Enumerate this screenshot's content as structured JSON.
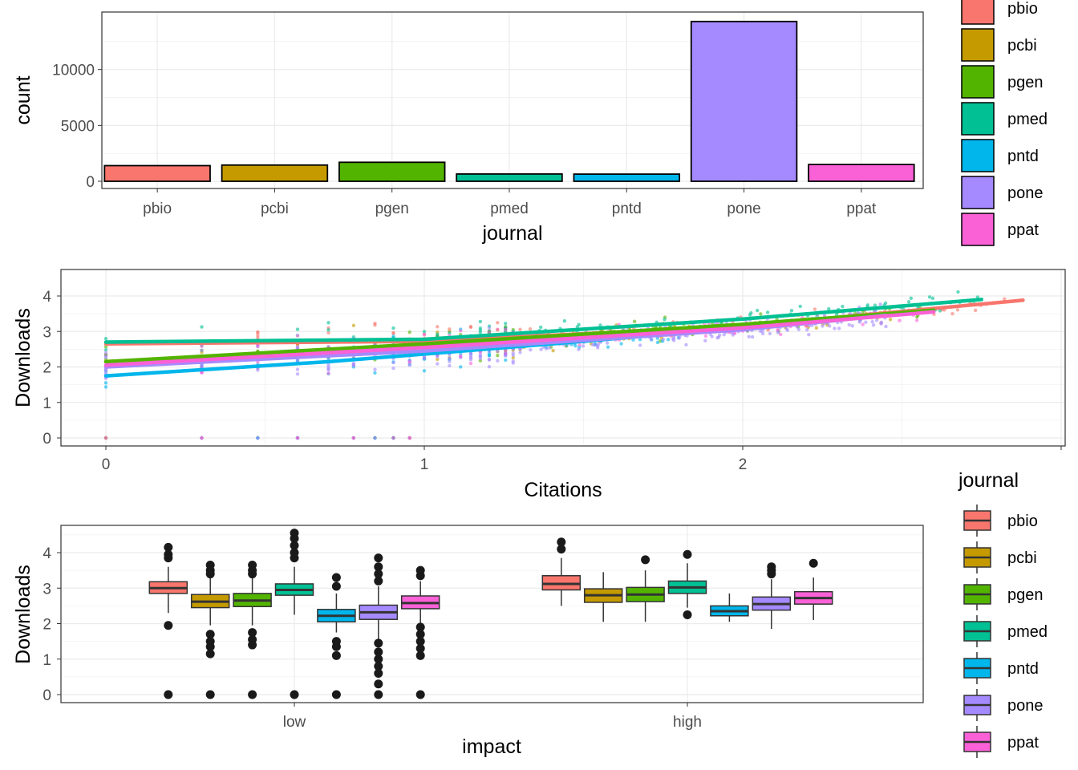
{
  "colors": {
    "pbio": "#F8766D",
    "pcbi": "#C49A00",
    "pgen": "#53B400",
    "pmed": "#00C094",
    "pntd": "#00B6EB",
    "pone": "#A58AFF",
    "ppat": "#FB61D7",
    "grid": "#EBEBEB",
    "border": "#333333",
    "axis_text": "#4D4D4D"
  },
  "chart_data": [
    {
      "type": "bar",
      "xlabel": "journal",
      "ylabel": "count",
      "categories": [
        "pbio",
        "pcbi",
        "pgen",
        "pmed",
        "pntd",
        "pone",
        "ppat"
      ],
      "values": [
        1400,
        1450,
        1700,
        650,
        640,
        14300,
        1500
      ],
      "ylim": [
        0,
        14500
      ],
      "yticks": [
        0,
        5000,
        10000
      ],
      "ytick_labels": [
        "0",
        "5000",
        "10000"
      ],
      "grid": true
    },
    {
      "type": "scatter",
      "xlabel": "Citations",
      "ylabel": "Downloads",
      "xlim": [
        0,
        3
      ],
      "ylim": [
        0,
        4.4
      ],
      "xticks": [
        0,
        1,
        2
      ],
      "xtick_labels": [
        "0",
        "1",
        "2"
      ],
      "yticks": [
        0,
        1,
        2,
        3,
        4
      ],
      "ytick_labels": [
        "0",
        "1",
        "2",
        "3",
        "4"
      ],
      "grid": true,
      "series": [
        {
          "name": "pbio",
          "trend": [
            [
              0,
              2.65
            ],
            [
              1,
              2.72
            ],
            [
              2,
              3.15
            ],
            [
              2.88,
              3.88
            ]
          ]
        },
        {
          "name": "pcbi",
          "trend": [
            [
              0,
              2.15
            ],
            [
              1,
              2.6
            ],
            [
              2,
              3.15
            ],
            [
              2.5,
              3.5
            ]
          ]
        },
        {
          "name": "pgen",
          "trend": [
            [
              0,
              2.15
            ],
            [
              1,
              2.65
            ],
            [
              2,
              3.2
            ],
            [
              2.6,
              3.6
            ]
          ]
        },
        {
          "name": "pmed",
          "trend": [
            [
              0,
              2.7
            ],
            [
              1,
              2.78
            ],
            [
              2,
              3.35
            ],
            [
              2.75,
              3.9
            ]
          ]
        },
        {
          "name": "pntd",
          "trend": [
            [
              0,
              1.75
            ],
            [
              0.7,
              2.15
            ],
            [
              1.4,
              2.65
            ],
            [
              1.8,
              2.95
            ]
          ]
        },
        {
          "name": "pone",
          "trend": [
            [
              0,
              2.0
            ],
            [
              1,
              2.45
            ],
            [
              2,
              3.05
            ],
            [
              2.45,
              3.45
            ]
          ]
        },
        {
          "name": "ppat",
          "trend": [
            [
              0,
              2.05
            ],
            [
              1,
              2.55
            ],
            [
              2,
              3.1
            ],
            [
              2.6,
              3.55
            ]
          ]
        }
      ]
    },
    {
      "type": "box",
      "xlabel": "impact",
      "ylabel": "Downloads",
      "categories": [
        "low",
        "high"
      ],
      "ylim": [
        -0.1,
        4.7
      ],
      "yticks": [
        0,
        1,
        2,
        3,
        4
      ],
      "ytick_labels": [
        "0",
        "1",
        "2",
        "3",
        "4"
      ],
      "grid": true,
      "groups": [
        {
          "impact": "low",
          "boxes": [
            {
              "name": "pbio",
              "min": 2.3,
              "q1": 2.85,
              "median": 3.0,
              "q3": 3.18,
              "max": 3.6,
              "outliers": [
                4.15,
                3.95,
                3.85,
                1.95,
                0
              ]
            },
            {
              "name": "pcbi",
              "min": 1.95,
              "q1": 2.45,
              "median": 2.62,
              "q3": 2.82,
              "max": 3.3,
              "outliers": [
                3.65,
                3.5,
                3.4,
                1.7,
                1.5,
                1.35,
                1.15,
                0
              ]
            },
            {
              "name": "pgen",
              "min": 1.95,
              "q1": 2.48,
              "median": 2.65,
              "q3": 2.85,
              "max": 3.3,
              "outliers": [
                3.65,
                3.5,
                3.4,
                1.75,
                1.55,
                1.4,
                0
              ]
            },
            {
              "name": "pmed",
              "min": 2.25,
              "q1": 2.8,
              "median": 2.95,
              "q3": 3.12,
              "max": 3.6,
              "outliers": [
                4.55,
                4.4,
                4.2,
                4.0,
                3.85,
                0
              ]
            },
            {
              "name": "pntd",
              "min": 1.75,
              "q1": 2.05,
              "median": 2.22,
              "q3": 2.4,
              "max": 2.85,
              "outliers": [
                3.3,
                3.05,
                1.5,
                1.35,
                1.1,
                0
              ]
            },
            {
              "name": "pone",
              "min": 1.55,
              "q1": 2.12,
              "median": 2.32,
              "q3": 2.52,
              "max": 3.05,
              "outliers": [
                3.85,
                3.6,
                3.4,
                3.2,
                1.45,
                1.2,
                1.0,
                0.8,
                0.6,
                0.3,
                0
              ]
            },
            {
              "name": "ppat",
              "min": 2.0,
              "q1": 2.42,
              "median": 2.58,
              "q3": 2.78,
              "max": 3.2,
              "outliers": [
                3.5,
                3.35,
                1.9,
                1.7,
                1.5,
                1.3,
                1.1,
                0
              ]
            }
          ]
        },
        {
          "impact": "high",
          "boxes": [
            {
              "name": "pbio",
              "min": 2.5,
              "q1": 2.95,
              "median": 3.12,
              "q3": 3.35,
              "max": 3.85,
              "outliers": [
                4.3,
                4.1
              ]
            },
            {
              "name": "pcbi",
              "min": 2.05,
              "q1": 2.6,
              "median": 2.8,
              "q3": 2.98,
              "max": 3.45,
              "outliers": []
            },
            {
              "name": "pgen",
              "min": 2.05,
              "q1": 2.62,
              "median": 2.82,
              "q3": 3.02,
              "max": 3.5,
              "outliers": [
                3.8
              ]
            },
            {
              "name": "pmed",
              "min": 2.45,
              "q1": 2.85,
              "median": 3.02,
              "q3": 3.2,
              "max": 3.7,
              "outliers": [
                3.95,
                2.25
              ]
            },
            {
              "name": "pntd",
              "min": 2.05,
              "q1": 2.22,
              "median": 2.35,
              "q3": 2.5,
              "max": 2.85,
              "outliers": []
            },
            {
              "name": "pone",
              "min": 1.85,
              "q1": 2.38,
              "median": 2.55,
              "q3": 2.75,
              "max": 3.25,
              "outliers": [
                3.6,
                3.5,
                3.4
              ]
            },
            {
              "name": "ppat",
              "min": 2.1,
              "q1": 2.55,
              "median": 2.72,
              "q3": 2.9,
              "max": 3.3,
              "outliers": [
                3.7
              ]
            }
          ]
        }
      ]
    }
  ],
  "legends": {
    "top": {
      "entries": [
        "pbio",
        "pcbi",
        "pgen",
        "pmed",
        "pntd",
        "pone",
        "ppat"
      ]
    },
    "bottom": {
      "title": "journal",
      "entries": [
        "pbio",
        "pcbi",
        "pgen",
        "pmed",
        "pntd",
        "pone",
        "ppat"
      ]
    }
  }
}
